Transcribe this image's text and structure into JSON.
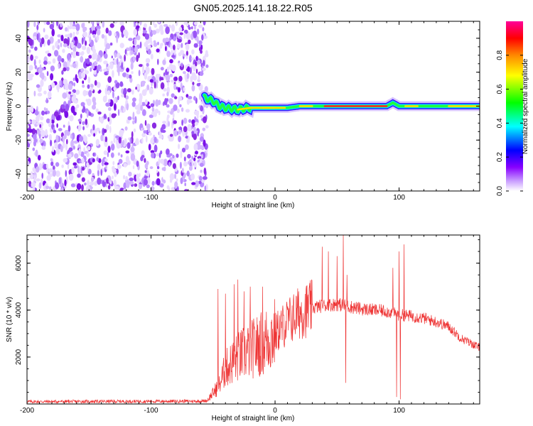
{
  "title": "GN05.2025.141.18.22.R05",
  "chart_data": [
    {
      "type": "heatmap",
      "title": "GN05.2025.141.18.22.R05",
      "xlabel": "Height of straight line (km)",
      "ylabel": "Frequency (Hz)",
      "xlim": [
        -200,
        165
      ],
      "ylim": [
        -50,
        50
      ],
      "x_ticks": [
        -200,
        -100,
        0,
        100
      ],
      "y_ticks": [
        -40,
        -20,
        0,
        20,
        40
      ],
      "noise_region_x": [
        -200,
        -57
      ],
      "signal_track": {
        "x": [
          -57,
          -50,
          -45,
          -40,
          -30,
          -20,
          -10,
          0,
          10,
          20,
          30,
          40,
          50,
          60,
          70,
          80,
          90,
          95,
          100,
          110,
          120,
          130,
          140,
          150,
          165
        ],
        "freq": [
          5,
          3,
          0,
          -1,
          -2,
          -1,
          -1,
          -1,
          -1,
          0,
          0,
          0,
          0,
          0,
          0,
          0,
          0,
          2,
          0,
          0,
          0,
          0,
          0,
          0,
          0
        ]
      },
      "colorbar": {
        "label": "Normalized spectral amplitude",
        "range": [
          0.0,
          1.0
        ],
        "ticks": [
          "0.0",
          "0.2",
          "0.4",
          "0.6",
          "0.8"
        ],
        "colors": [
          "#ffffff",
          "#8800ff",
          "#0000ff",
          "#00ffff",
          "#00ff00",
          "#ffff00",
          "#ff8800",
          "#ff0000",
          "#ff00aa"
        ]
      },
      "grid": false
    },
    {
      "type": "line",
      "xlabel": "Height of straight line (km)",
      "ylabel": "SNR (10 * v/v)",
      "xlim": [
        -200,
        165
      ],
      "ylim": [
        0,
        7200
      ],
      "x_ticks": [
        -200,
        -100,
        0,
        100
      ],
      "y_ticks": [
        2000,
        4000,
        6000
      ],
      "color": "#ee3333",
      "envelope": {
        "x": [
          -200,
          -60,
          -55,
          -45,
          -40,
          -30,
          -20,
          -10,
          0,
          10,
          20,
          30,
          40,
          50,
          60,
          70,
          80,
          90,
          100,
          110,
          120,
          130,
          140,
          150,
          165
        ],
        "y": [
          100,
          120,
          140,
          800,
          1500,
          2000,
          2300,
          2600,
          3000,
          3500,
          3900,
          4100,
          4200,
          4250,
          4150,
          4050,
          4000,
          3950,
          3800,
          3750,
          3650,
          3500,
          3300,
          2800,
          2400
        ]
      },
      "spikes": [
        {
          "x": -46,
          "y": 4900
        },
        {
          "x": -40,
          "y": 4700
        },
        {
          "x": -33,
          "y": 5100
        },
        {
          "x": -30,
          "y": 5300
        },
        {
          "x": -25,
          "y": 4800
        },
        {
          "x": -20,
          "y": 5000
        },
        {
          "x": -10,
          "y": 5000
        },
        {
          "x": 38,
          "y": 6700
        },
        {
          "x": 43,
          "y": 6500
        },
        {
          "x": 50,
          "y": 6300
        },
        {
          "x": 55,
          "y": 7200
        },
        {
          "x": 58,
          "y": 5500
        },
        {
          "x": 95,
          "y": 5800
        },
        {
          "x": 100,
          "y": 6500
        },
        {
          "x": 104,
          "y": 6800
        }
      ],
      "dips": [
        {
          "x": 57,
          "y": 900
        },
        {
          "x": 98,
          "y": 300
        },
        {
          "x": 101,
          "y": 200
        }
      ],
      "grid": false
    }
  ]
}
